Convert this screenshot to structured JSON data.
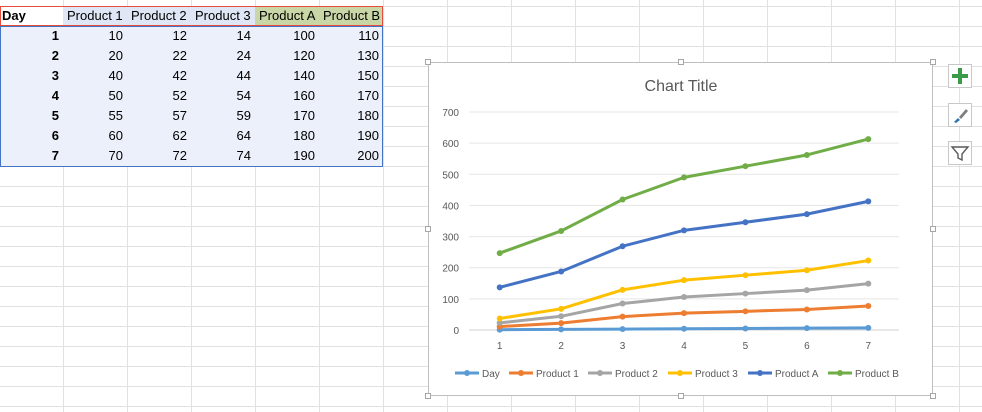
{
  "table": {
    "headers": [
      "Day",
      "Product 1",
      "Product 2",
      "Product 3",
      "Product A",
      "Product B"
    ],
    "rows": [
      [
        "1",
        "10",
        "12",
        "14",
        "100",
        "110"
      ],
      [
        "2",
        "20",
        "22",
        "24",
        "120",
        "130"
      ],
      [
        "3",
        "40",
        "42",
        "44",
        "140",
        "150"
      ],
      [
        "4",
        "50",
        "52",
        "54",
        "160",
        "170"
      ],
      [
        "5",
        "55",
        "57",
        "59",
        "170",
        "180"
      ],
      [
        "6",
        "60",
        "62",
        "64",
        "180",
        "190"
      ],
      [
        "7",
        "70",
        "72",
        "74",
        "190",
        "200"
      ]
    ]
  },
  "colors": {
    "header_fill_series1": "#dfe6f5",
    "header_fill_series2": "#c9d6a6",
    "selection_fill": "#ecf0fa",
    "selection_border": "#4472c4",
    "header_row_border": "#e84c3d"
  },
  "chart_buttons": {
    "add_icon": "plus-icon",
    "style_icon": "brush-icon",
    "filter_icon": "filter-icon"
  },
  "chart_data": {
    "type": "line",
    "title": "Chart Title",
    "xlabel": "",
    "ylabel": "",
    "categories": [
      "1",
      "2",
      "3",
      "4",
      "5",
      "6",
      "7"
    ],
    "ylim": [
      0,
      700
    ],
    "yticks": [
      "0",
      "100",
      "200",
      "300",
      "400",
      "500",
      "600",
      "700"
    ],
    "stacked": true,
    "grid": true,
    "legend_position": "bottom",
    "series": [
      {
        "name": "Day",
        "color": "#5b9bd5",
        "values": [
          1,
          2,
          3,
          4,
          5,
          6,
          7
        ]
      },
      {
        "name": "Product 1",
        "color": "#ed7d31",
        "values": [
          10,
          20,
          40,
          50,
          55,
          60,
          70
        ]
      },
      {
        "name": "Product 2",
        "color": "#a5a5a5",
        "values": [
          12,
          22,
          42,
          52,
          57,
          62,
          72
        ]
      },
      {
        "name": "Product 3",
        "color": "#ffc000",
        "values": [
          14,
          24,
          44,
          54,
          59,
          64,
          74
        ]
      },
      {
        "name": "Product A",
        "color": "#4472c4",
        "values": [
          100,
          120,
          140,
          160,
          170,
          180,
          190
        ]
      },
      {
        "name": "Product B",
        "color": "#70ad47",
        "values": [
          110,
          130,
          150,
          170,
          180,
          190,
          200
        ]
      }
    ]
  }
}
